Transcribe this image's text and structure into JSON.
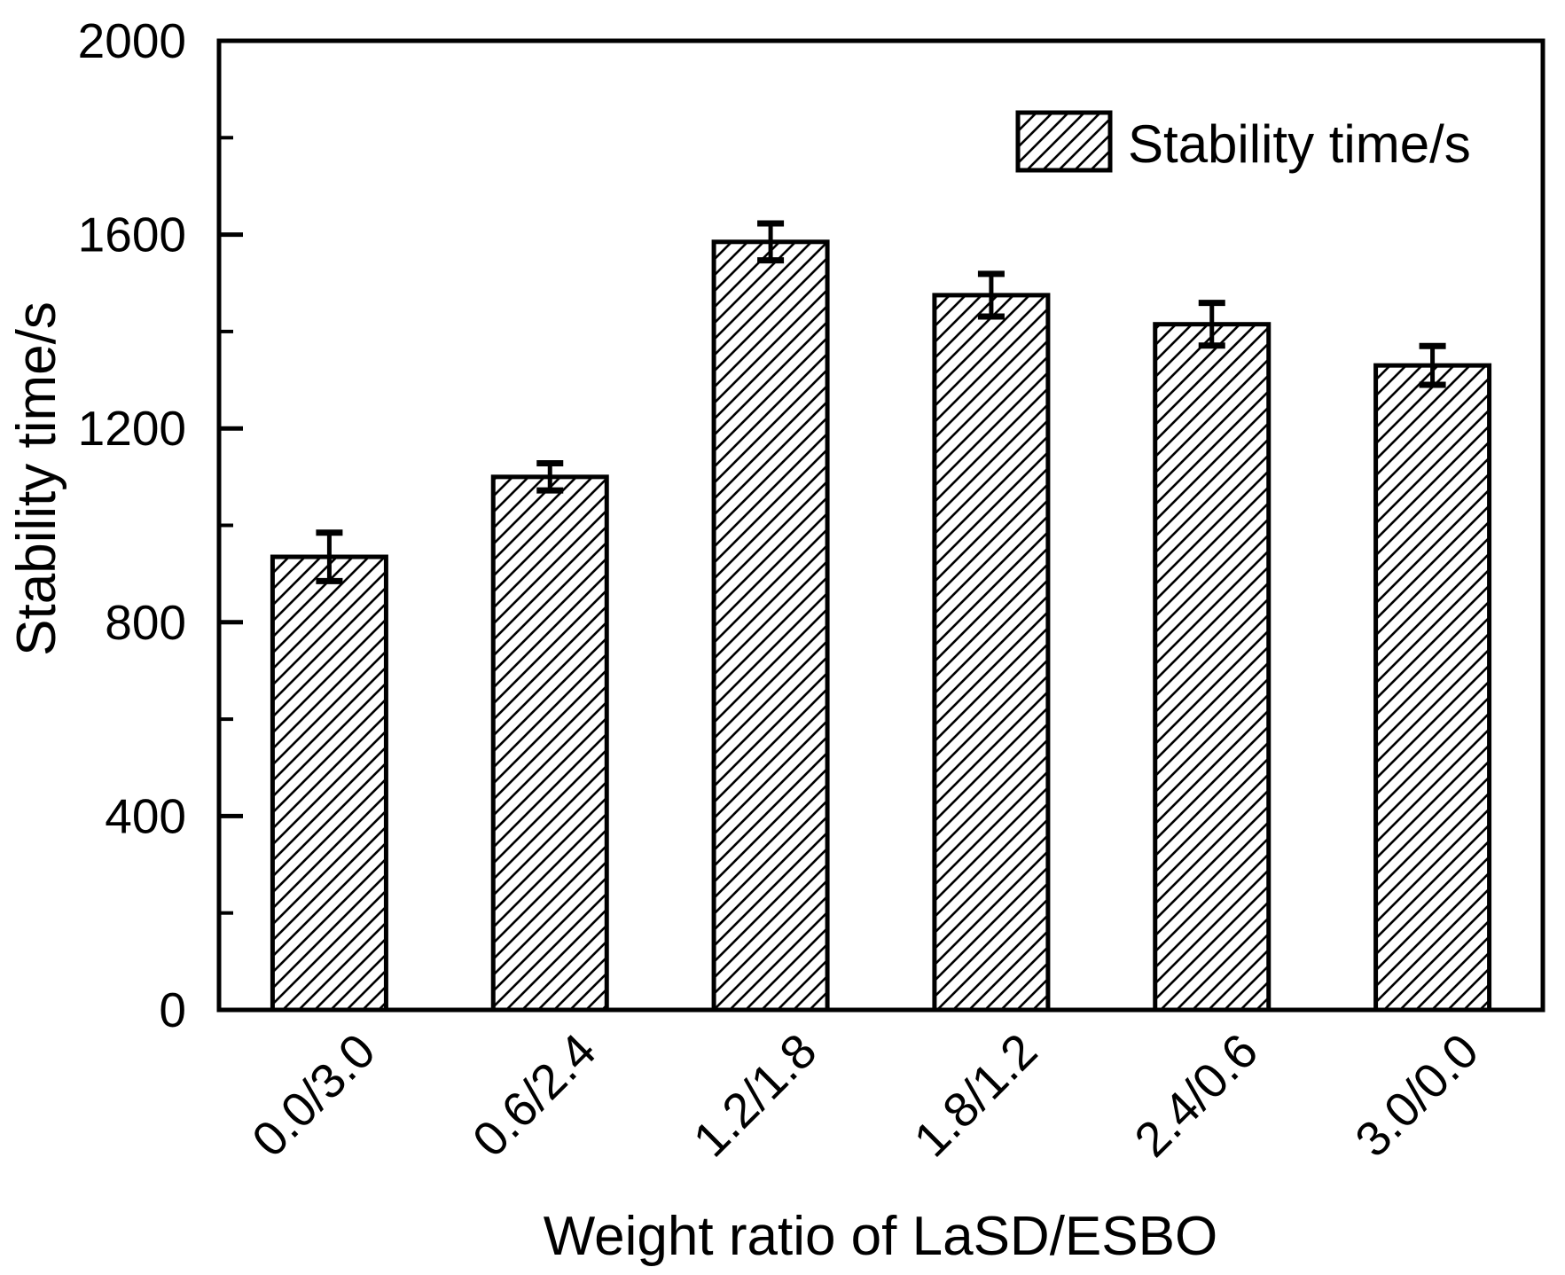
{
  "figure": {
    "background": "#ffffff",
    "foreground": "#000000"
  },
  "legend": {
    "label": "Stability time/s",
    "swatch_style": "diagonal-hatch",
    "position": "upper-right",
    "frame": false
  },
  "chart_data": {
    "type": "bar",
    "title": "",
    "xlabel": "Weight ratio of LaSD/ESBO",
    "ylabel": "Stability time/s",
    "categories": [
      "0.0/3.0",
      "0.6/2.4",
      "1.2/1.8",
      "1.8/1.2",
      "2.4/0.6",
      "3.0/0.0"
    ],
    "series": [
      {
        "name": "Stability time/s",
        "values": [
          935,
          1100,
          1585,
          1475,
          1415,
          1330
        ],
        "errors": [
          50,
          28,
          38,
          44,
          44,
          40
        ]
      }
    ],
    "ylim": [
      0,
      2000
    ],
    "yticks_major": [
      0,
      400,
      800,
      1200,
      1600,
      2000
    ],
    "yticks_minor": [
      200,
      600,
      1000,
      1400,
      1800
    ],
    "grid": false,
    "bar_style": {
      "fill": "diagonal-hatch",
      "edge_color": "#000000",
      "hatch_color": "#000000",
      "background": "#ffffff"
    },
    "error_bar_color": "#000000"
  }
}
